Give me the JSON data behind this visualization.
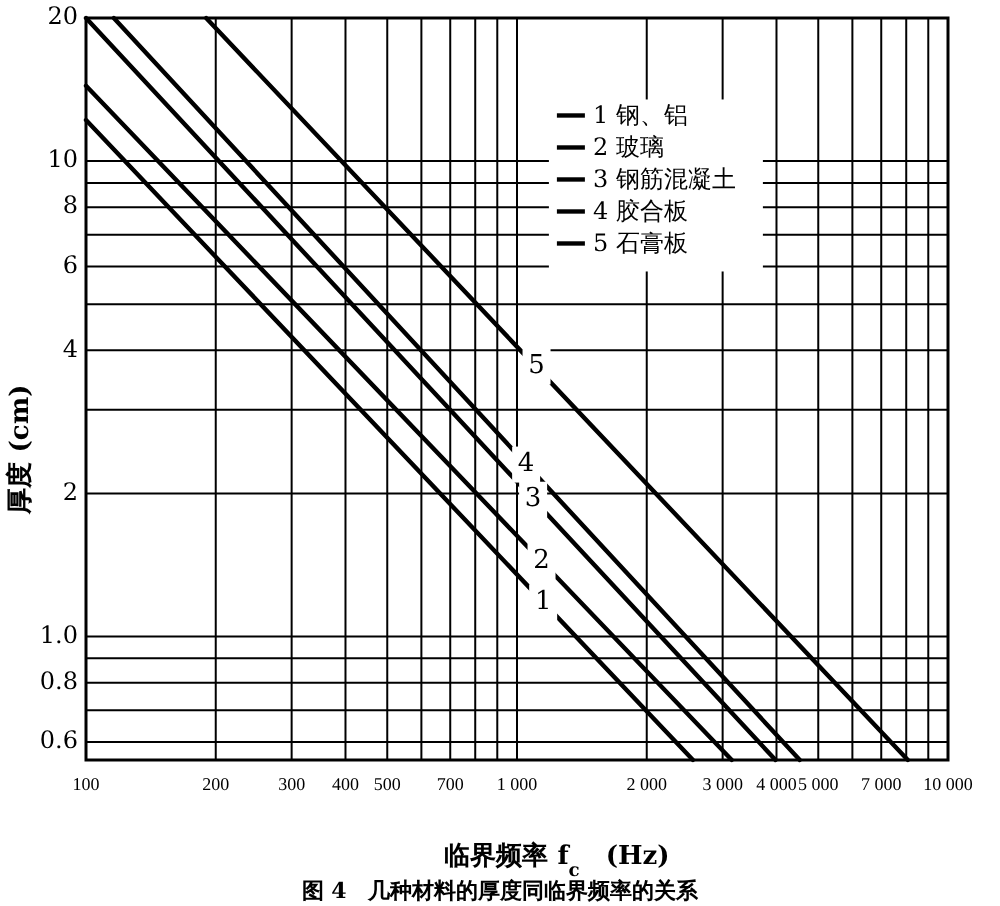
{
  "chart_data": {
    "type": "line",
    "title": "图 4　几种材料的厚度同临界频率的关系",
    "xlabel": "临界频率 f$_{c}$　(Hz)",
    "ylabel": "厚度 (cm)",
    "log": "xy",
    "grid": true,
    "legend": "top right",
    "line_style": "solid",
    "marker": "none",
    "xlim": [
      100,
      10000
    ],
    "ylim": [
      0.55,
      20
    ],
    "xticks": [
      100,
      200,
      300,
      400,
      500,
      {
        "value": 600,
        "label": null
      },
      700,
      {
        "value": 800,
        "label": null
      },
      {
        "value": 900,
        "label": null
      },
      {
        "value": 1000,
        "label": "1 000"
      },
      {
        "value": 2000,
        "label": "2 000"
      },
      {
        "value": 3000,
        "label": "3 000"
      },
      {
        "value": 4000,
        "label": "4 000"
      },
      {
        "value": 5000,
        "label": "5 000"
      },
      {
        "value": 6000,
        "label": null
      },
      {
        "value": 7000,
        "label": "7 000"
      },
      {
        "value": 8000,
        "label": null
      },
      {
        "value": 9000,
        "label": null
      },
      {
        "value": 10000,
        "label": "10 000"
      }
    ],
    "yticks": [
      0.6,
      {
        "value": 0.7,
        "label": null
      },
      0.8,
      {
        "value": 0.9,
        "label": null
      },
      {
        "value": 1,
        "label": "1.0"
      },
      2,
      {
        "value": 3,
        "label": null
      },
      4,
      {
        "value": 5,
        "label": null
      },
      6,
      {
        "value": 7,
        "label": null
      },
      8,
      {
        "value": 9,
        "label": null
      },
      10,
      20
    ],
    "series": [
      {
        "name": "1 钢、铝",
        "color": "#000000",
        "x": [
          100,
          2560
        ],
        "values": [
          12.2,
          0.55
        ]
      },
      {
        "name": "2 玻璃",
        "color": "#000000",
        "x": [
          100,
          3150
        ],
        "values": [
          14.4,
          0.55
        ]
      },
      {
        "name": "3 钢筋混凝土",
        "color": "#000000",
        "x": [
          100,
          3980
        ],
        "values": [
          20,
          0.55
        ]
      },
      {
        "name": "4 胶合板",
        "color": "#000000",
        "x": [
          116,
          4530
        ],
        "values": [
          20,
          0.55
        ]
      },
      {
        "name": "5 石膏板",
        "color": "#000000",
        "x": [
          190,
          8070
        ],
        "values": [
          20,
          0.55
        ]
      }
    ],
    "annotations": [
      {
        "text": "1",
        "x": 1150,
        "y": 1.18
      },
      {
        "text": "2",
        "x": 1140,
        "y": 1.44
      },
      {
        "text": "3",
        "x": 1090,
        "y": 1.94
      },
      {
        "text": "4",
        "x": 1050,
        "y": 2.3
      },
      {
        "text": "5",
        "x": 1110,
        "y": 3.7
      }
    ]
  }
}
